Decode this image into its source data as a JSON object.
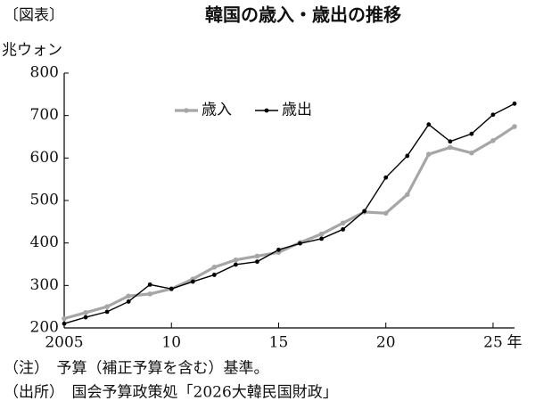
{
  "chart_data": {
    "type": "line",
    "label": "〔図表〕",
    "title": "韓国の歳入・歳出の推移",
    "y_axis_label": "兆ウォン",
    "x_unit": "年",
    "x": [
      2005,
      2006,
      2007,
      2008,
      2009,
      2010,
      2011,
      2012,
      2013,
      2014,
      2015,
      2016,
      2017,
      2018,
      2019,
      2020,
      2021,
      2022,
      2023,
      2024,
      2025,
      2026
    ],
    "series": [
      {
        "name": "歳入",
        "color": "#a6a6a6",
        "values": [
          222,
          236,
          250,
          275,
          280,
          292,
          315,
          343,
          360,
          369,
          378,
          401,
          421,
          447,
          473,
          470,
          514,
          609,
          625,
          612,
          641,
          674
        ]
      },
      {
        "name": "歳出",
        "color": "#000000",
        "values": [
          210,
          225,
          238,
          262,
          302,
          292,
          309,
          325,
          349,
          356,
          384,
          399,
          410,
          432,
          475,
          554,
          605,
          679,
          639,
          657,
          702,
          728
        ]
      }
    ],
    "xlim": [
      2005,
      2026
    ],
    "xticks": [
      {
        "value": 2005,
        "label": "2005"
      },
      {
        "value": 2010,
        "label": "10"
      },
      {
        "value": 2015,
        "label": "15"
      },
      {
        "value": 2020,
        "label": "20"
      },
      {
        "value": 2025,
        "label": "25"
      }
    ],
    "ylim": [
      200,
      800
    ],
    "yticks": [
      200,
      300,
      400,
      500,
      600,
      700,
      800
    ],
    "grid": false,
    "legend": "top",
    "notes": [
      "（注）　予算（補正予算を含む）基準。",
      "（出所）　国会予算政策処「2026大韓民国財政」"
    ]
  }
}
